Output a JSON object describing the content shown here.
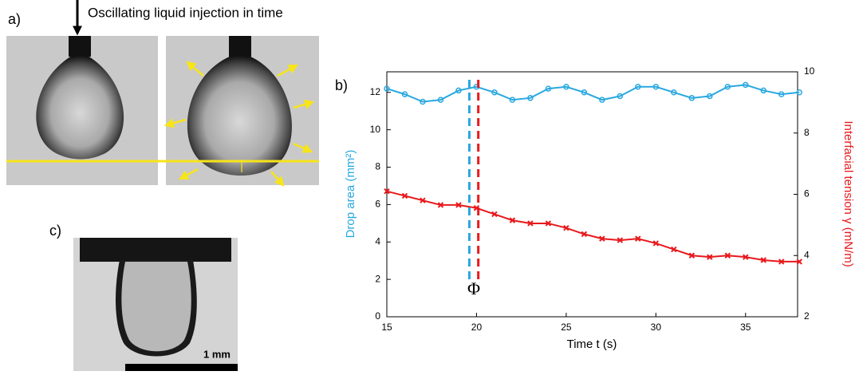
{
  "figure": {
    "panel_a_label": "a)",
    "injection_label": "Oscillating liquid injection in time",
    "panel_c_label": "c)",
    "scale_bar_label": "1 mm"
  },
  "chart_data": {
    "type": "line",
    "panel_label": "b)",
    "x_label": "Time t (s)",
    "y_label": "Drop area (mm²)",
    "y2_label": "Interfacial tension γ  (mN/m)",
    "x": [
      15,
      16,
      17,
      18,
      19,
      20,
      21,
      22,
      23,
      24,
      25,
      26,
      27,
      28,
      29,
      30,
      31,
      32,
      33,
      34,
      35,
      36,
      37,
      38
    ],
    "series": [
      {
        "name": "Drop area",
        "color": "#29a8e0",
        "values": [
          12.2,
          11.9,
          11.5,
          11.6,
          12.1,
          12.3,
          12.0,
          11.6,
          11.7,
          12.2,
          12.3,
          12.0,
          11.6,
          11.8,
          12.3,
          12.3,
          12.0,
          11.7,
          11.8,
          12.3,
          12.4,
          12.1,
          11.9,
          12.0
        ]
      },
      {
        "name": "Interfacial tension",
        "color": "#e8191c",
        "axis": "y2",
        "values": [
          6.1,
          5.95,
          5.8,
          5.65,
          5.65,
          5.55,
          5.35,
          5.15,
          5.05,
          5.05,
          4.9,
          4.7,
          4.55,
          4.5,
          4.55,
          4.4,
          4.2,
          4.0,
          3.95,
          4.0,
          3.95,
          3.85,
          3.8,
          3.8
        ]
      }
    ],
    "xlim": [
      15,
      37.9
    ],
    "xticks": [
      15,
      20,
      25,
      30,
      35
    ],
    "ylim": [
      0,
      13.1
    ],
    "yticks": [
      0,
      2,
      4,
      6,
      8,
      10,
      12
    ],
    "y2lim": [
      2,
      10
    ],
    "y2ticks": [
      2,
      4,
      6,
      8,
      10
    ],
    "phase_lines": [
      {
        "x": 19.6,
        "color": "#29a8e0"
      },
      {
        "x": 20.1,
        "color": "#e8191c"
      }
    ],
    "phase_label": "Φ"
  }
}
